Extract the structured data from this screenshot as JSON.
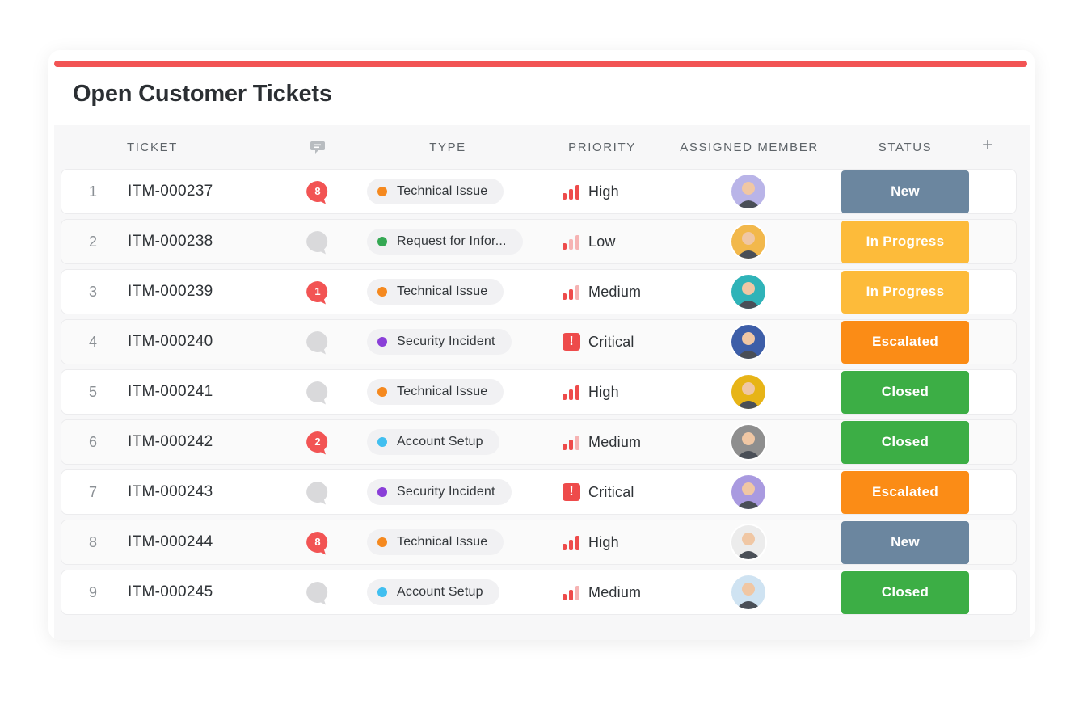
{
  "header": {
    "title": "Open Customer Tickets"
  },
  "columns": {
    "ticket": "TICKET",
    "comments_icon": "comment-icon",
    "type": "TYPE",
    "priority": "PRIORITY",
    "assigned": "ASSIGNED MEMBER",
    "status": "STATUS",
    "add_icon": "plus-icon",
    "add_symbol": "+"
  },
  "colors": {
    "accent": "#f25454",
    "comment_badge": "#f25454",
    "comment_empty": "#d9d9db",
    "type_technical": "#f5891f",
    "type_request": "#34a853",
    "type_security": "#8a3fd8",
    "type_account": "#41bff0",
    "status_new": "#6b869f",
    "status_in_progress": "#fdbb3a",
    "status_escalated": "#fb8c16",
    "status_closed": "#3cae45"
  },
  "tickets": [
    {
      "num": "1",
      "id": "ITM-000237",
      "comments": "8",
      "type": "Technical Issue",
      "type_color": "#f5891f",
      "priority": "High",
      "priority_level": 3,
      "assignee_avatar": "avatar",
      "avatar_bg": "#b9b4e8",
      "status": "New",
      "status_color": "#6b869f"
    },
    {
      "num": "2",
      "id": "ITM-000238",
      "comments": "",
      "type": "Request for Infor...",
      "type_color": "#34a853",
      "priority": "Low",
      "priority_level": 1,
      "assignee_avatar": "avatar",
      "avatar_bg": "#f2b84b",
      "status": "In Progress",
      "status_color": "#fdbb3a"
    },
    {
      "num": "3",
      "id": "ITM-000239",
      "comments": "1",
      "type": "Technical Issue",
      "type_color": "#f5891f",
      "priority": "Medium",
      "priority_level": 2,
      "assignee_avatar": "avatar",
      "avatar_bg": "#2fb3b8",
      "status": "In Progress",
      "status_color": "#fdbb3a"
    },
    {
      "num": "4",
      "id": "ITM-000240",
      "comments": "",
      "type": "Security Incident",
      "type_color": "#8a3fd8",
      "priority": "Critical",
      "priority_level": 4,
      "assignee_avatar": "avatar",
      "avatar_bg": "#3d5ea8",
      "status": "Escalated",
      "status_color": "#fb8c16"
    },
    {
      "num": "5",
      "id": "ITM-000241",
      "comments": "",
      "type": "Technical Issue",
      "type_color": "#f5891f",
      "priority": "High",
      "priority_level": 3,
      "assignee_avatar": "avatar",
      "avatar_bg": "#e7b417",
      "status": "Closed",
      "status_color": "#3cae45"
    },
    {
      "num": "6",
      "id": "ITM-000242",
      "comments": "2",
      "type": "Account Setup",
      "type_color": "#41bff0",
      "priority": "Medium",
      "priority_level": 2,
      "assignee_avatar": "avatar",
      "avatar_bg": "#8e8e8e",
      "status": "Closed",
      "status_color": "#3cae45"
    },
    {
      "num": "7",
      "id": "ITM-000243",
      "comments": "",
      "type": "Security Incident",
      "type_color": "#8a3fd8",
      "priority": "Critical",
      "priority_level": 4,
      "assignee_avatar": "avatar",
      "avatar_bg": "#a99ae0",
      "status": "Escalated",
      "status_color": "#fb8c16"
    },
    {
      "num": "8",
      "id": "ITM-000244",
      "comments": "8",
      "type": "Technical Issue",
      "type_color": "#f5891f",
      "priority": "High",
      "priority_level": 3,
      "assignee_avatar": "avatar",
      "avatar_bg": "#ececec",
      "status": "New",
      "status_color": "#6b869f"
    },
    {
      "num": "9",
      "id": "ITM-000245",
      "comments": "",
      "type": "Account Setup",
      "type_color": "#41bff0",
      "priority": "Medium",
      "priority_level": 2,
      "assignee_avatar": "avatar",
      "avatar_bg": "#cfe3f2",
      "status": "Closed",
      "status_color": "#3cae45"
    }
  ]
}
